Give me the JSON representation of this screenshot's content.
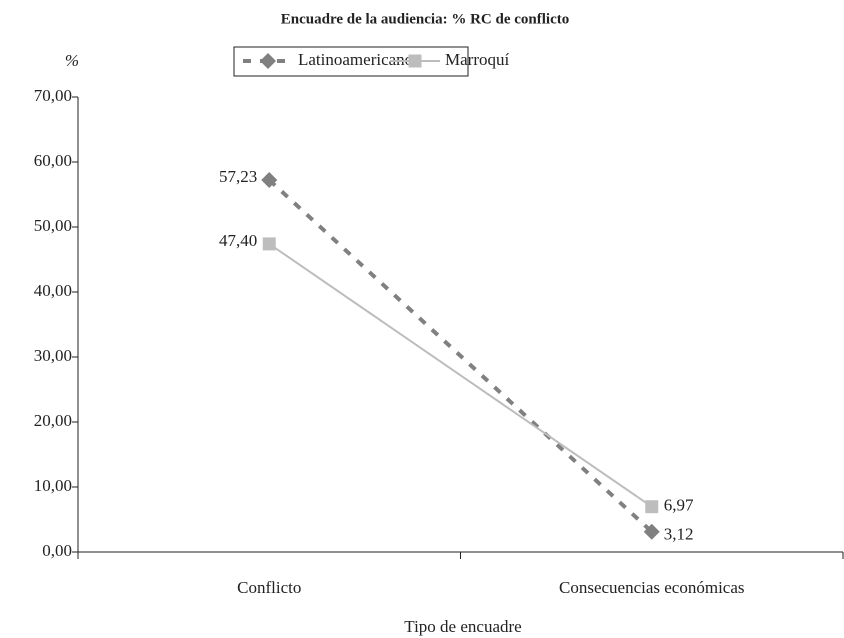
{
  "chart_data": {
    "type": "line",
    "title": "Encuadre de la audiencia: % RC de conflicto",
    "ylabel": "%",
    "xlabel": "Tipo de encuadre",
    "categories": [
      "Conflicto",
      "Consecuencias económicas"
    ],
    "series": [
      {
        "name": "Latinoamericano",
        "color": "#808080",
        "dash": true,
        "marker": "diamond",
        "values": [
          57.23,
          3.12
        ],
        "value_labels": [
          "57,23",
          "3,12"
        ]
      },
      {
        "name": "Marroquí",
        "color": "#bdbdbd",
        "dash": false,
        "marker": "square",
        "values": [
          47.4,
          6.97
        ],
        "value_labels": [
          "47,40",
          "6,97"
        ]
      }
    ],
    "ylim": [
      0,
      70
    ],
    "yticks": [
      {
        "value": 0,
        "label": "0,00"
      },
      {
        "value": 10,
        "label": "10,00"
      },
      {
        "value": 20,
        "label": "20,00"
      },
      {
        "value": 30,
        "label": "30,00"
      },
      {
        "value": 40,
        "label": "40,00"
      },
      {
        "value": 50,
        "label": "50,00"
      },
      {
        "value": 60,
        "label": "60,00"
      },
      {
        "value": 70,
        "label": "70,00"
      }
    ],
    "grid": false,
    "legend": "top"
  }
}
